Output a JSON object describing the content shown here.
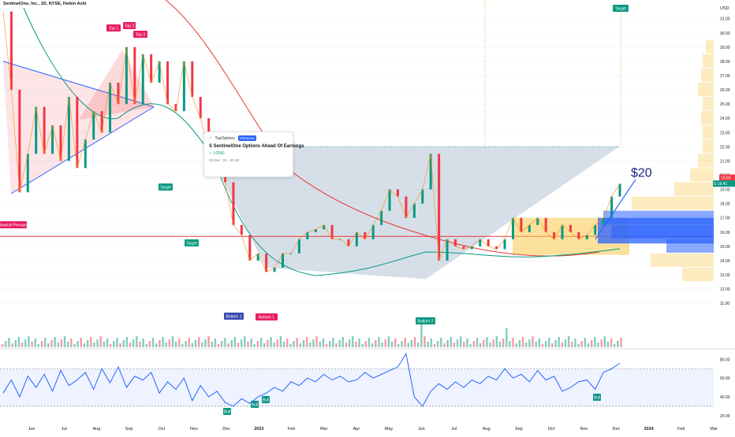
{
  "header": {
    "title": "SentinelOne, Inc., 1D, NYSE, Heikin Ashi"
  },
  "idea": {
    "author": "TopOptions",
    "badge": "PREMIUM",
    "title": "S SentinelOne Options Ahead Of Earnings",
    "direction": "✓ LONG",
    "date": "03 Dec, '22 · 20:49"
  },
  "axis": {
    "currency": "USD"
  },
  "annotations": {
    "top1": "Top 1",
    "top2": "Top 2",
    "top3": "Top 3",
    "bearish": "Bearish Pennant",
    "target_a": "Target",
    "target_b": "Target",
    "target_c": "Target",
    "bottom1a": "Bottom 1",
    "bottom1b": "Bottom 1",
    "bottom2": "Bottom 2",
    "price_goal": "$20",
    "bull1": "Bull",
    "bull2": "Bull",
    "bull3": "Bull",
    "bull4": "Bull"
  },
  "price_tags": {
    "upper": "19.83",
    "lower_symbol": "S",
    "lower": "19.41"
  },
  "colors": {
    "up": "#089981",
    "down": "#f23645",
    "ma_green": "#089981",
    "ma_red": "#e53935",
    "rsi": "#2962ff",
    "accent_blue": "#2962ff"
  },
  "chart_data": [
    {
      "type": "line",
      "title": "SentinelOne, Inc., 1D, NYSE, Heikin Ashi",
      "price_axis_ticks": [
        31,
        30,
        29,
        28,
        27,
        26,
        25,
        24,
        23,
        22,
        21,
        20,
        19,
        18,
        17,
        16,
        15,
        14,
        13,
        12,
        11
      ],
      "ylim": [
        10.4,
        32.2
      ],
      "x_tick_labels": [
        "Jun",
        "Jul",
        "Aug",
        "Sep",
        "Oct",
        "Nov",
        "Dec",
        "2023",
        "Feb",
        "Mar",
        "Apr",
        "May",
        "Jun",
        "Jul",
        "Aug",
        "Sep",
        "Oct",
        "Nov",
        "Dec",
        "2024",
        "Feb",
        "Mar"
      ],
      "series": [
        {
          "values": [
            31.5,
            26.0,
            18.8,
            21.5,
            24.8,
            21.5,
            23.5,
            21.0,
            25.5,
            20.5,
            22.5,
            24.5,
            23.0,
            26.5,
            25.0,
            29.0,
            25.0,
            28.5,
            26.5,
            28.0,
            25.0,
            24.5,
            28.0,
            25.5,
            24.0,
            21.5,
            22.5,
            19.5,
            16.5,
            15.8,
            14.0,
            14.5,
            13.2,
            13.5,
            14.5,
            14.5,
            15.5,
            16.0,
            16.2,
            16.5,
            15.5,
            15.5,
            15.0,
            16.0,
            15.5,
            16.5,
            17.5,
            19.0,
            18.5,
            17.0,
            18.0,
            19.0,
            21.5,
            14.0,
            15.5,
            15.0,
            14.8,
            15.0,
            15.5,
            15.0,
            14.8,
            15.5,
            17.0,
            16.0,
            16.5,
            17.0,
            16.0,
            15.5,
            16.5,
            16.0,
            15.5,
            15.8,
            16.5,
            17.0,
            18.5,
            19.4
          ]
        }
      ],
      "levels": {
        "resistance": 22.0,
        "support_line": 15.7,
        "target_high": 31.8
      },
      "annotations": [
        "Top 1",
        "Top 2",
        "Top 3",
        "Bearish Pennant",
        "Target",
        "Bottom 1",
        "Bottom 2",
        "$20"
      ]
    },
    {
      "type": "line",
      "title": "RSI",
      "ylim": [
        14,
        87
      ],
      "yticks": [
        80.0,
        60.0,
        40.0,
        20.0
      ],
      "series": [
        {
          "values": [
            44,
            58,
            40,
            62,
            50,
            64,
            46,
            68,
            52,
            58,
            66,
            48,
            70,
            55,
            72,
            50,
            62,
            58,
            66,
            44,
            56,
            48,
            60,
            36,
            52,
            40,
            46,
            34,
            30,
            38,
            33,
            40,
            44,
            50,
            46,
            56,
            52,
            60,
            56,
            64,
            58,
            62,
            56,
            58,
            66,
            60,
            64,
            68,
            72,
            86,
            40,
            30,
            46,
            54,
            48,
            56,
            50,
            58,
            54,
            62,
            58,
            70,
            60,
            64,
            56,
            68,
            58,
            62,
            46,
            50,
            56,
            58,
            48,
            66,
            70,
            76
          ]
        }
      ],
      "band": [
        30,
        70
      ]
    }
  ]
}
